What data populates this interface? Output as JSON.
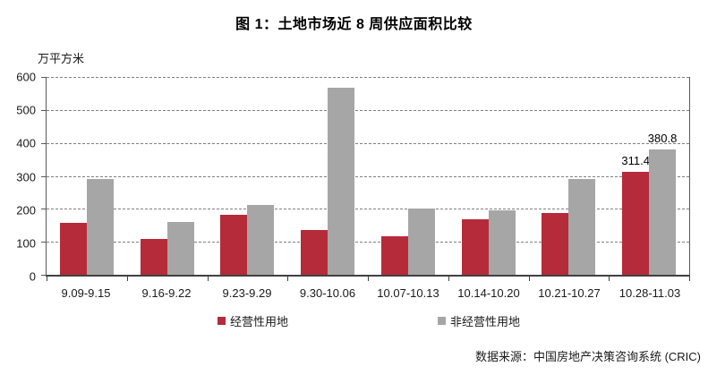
{
  "title": "图 1：土地市场近 8 周供应面积比较",
  "source": "数据来源：中国房地产决策咨询系统 (CRIC)",
  "colors": {
    "operational_red": "#B52B3A",
    "non_operational_gray": "#A6A6A6",
    "axis_dark": "#404040",
    "gridline_gray": "#7F7F7F"
  },
  "chart_data": {
    "type": "bar",
    "title": "图 1：土地市场近 8 周供应面积比较",
    "y_unit_label": "万平方米",
    "xlabel": "",
    "ylabel": "万平方米",
    "ylim": [
      0,
      600
    ],
    "y_ticks": [
      0,
      100,
      200,
      300,
      400,
      500,
      600
    ],
    "grid": "horizontal dashed gridlines at every 100, from 100 to 600",
    "legend_position": "bottom",
    "categories": [
      "9.09-9.15",
      "9.16-9.22",
      "9.23-9.29",
      "9.30-10.06",
      "10.07-10.13",
      "10.14-10.20",
      "10.21-10.27",
      "10.28-11.03"
    ],
    "series": [
      {
        "name": "经营性用地",
        "color": "#B52B3A",
        "values": [
          157,
          108,
          183,
          135,
          116,
          168,
          187,
          311.4
        ],
        "value_labels": [
          null,
          null,
          null,
          null,
          null,
          null,
          null,
          "311.4"
        ]
      },
      {
        "name": "非经营性用地",
        "color": "#A6A6A6",
        "values": [
          290,
          160,
          211,
          568,
          200,
          195,
          290,
          380.8
        ],
        "value_labels": [
          null,
          null,
          null,
          null,
          null,
          null,
          null,
          "380.8"
        ]
      }
    ]
  }
}
